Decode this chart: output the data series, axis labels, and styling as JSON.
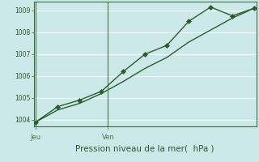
{
  "line1_x": [
    0,
    1,
    2,
    3,
    4,
    5,
    6,
    7,
    8,
    9,
    10
  ],
  "line1_y": [
    1003.9,
    1004.6,
    1004.9,
    1005.3,
    1006.2,
    1007.0,
    1007.4,
    1008.5,
    1009.15,
    1008.75,
    1009.1
  ],
  "line2_x": [
    0,
    1,
    2,
    3,
    4,
    5,
    6,
    7,
    8,
    9,
    10
  ],
  "line2_y": [
    1003.9,
    1004.45,
    1004.75,
    1005.2,
    1005.75,
    1006.35,
    1006.85,
    1007.55,
    1008.1,
    1008.65,
    1009.1
  ],
  "ylim": [
    1003.7,
    1009.4
  ],
  "yticks": [
    1004,
    1005,
    1006,
    1007,
    1008,
    1009
  ],
  "xlim": [
    -0.1,
    10.1
  ],
  "xtick_positions": [
    0.0,
    3.3
  ],
  "xtick_labels": [
    "Jeu",
    "Ven"
  ],
  "xlabel": "Pression niveau de la mer(  hPa )",
  "line_color": "#2a5e2a",
  "bg_color": "#cce8e8",
  "grid_color": "#b8d8d8",
  "spine_color": "#3a6e3a",
  "vline_color": "#4a7a4a",
  "marker": "D",
  "marker_size": 3.0,
  "line_width": 1.0,
  "ytick_fontsize": 5.5,
  "xtick_fontsize": 6.0,
  "xlabel_fontsize": 7.5
}
